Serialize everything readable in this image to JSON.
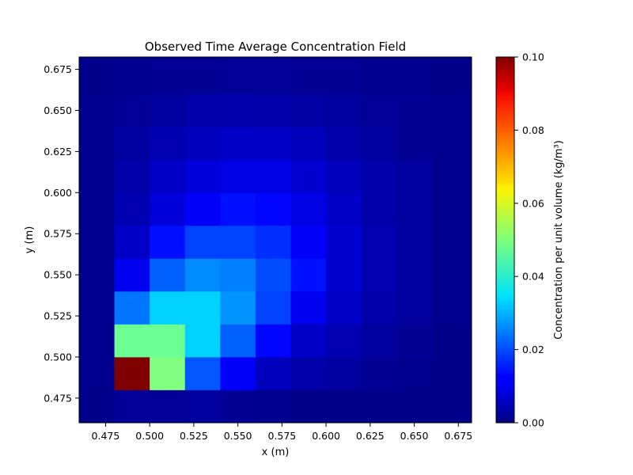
{
  "chart_data": {
    "type": "heatmap",
    "title": "Observed Time Average Concentration Field",
    "xlabel": "x (m)",
    "ylabel": "y (m)",
    "colorbar_label": "Concentration per unit volume (kg/m³)",
    "colormap": "jet",
    "xlim": [
      0.46,
      0.6825
    ],
    "ylim": [
      0.46,
      0.6825
    ],
    "clim": [
      0.0,
      0.1
    ],
    "cell_size": 0.02,
    "x_ticks": [
      0.475,
      0.5,
      0.525,
      0.55,
      0.575,
      0.6,
      0.625,
      0.65,
      0.675
    ],
    "x_tick_labels": [
      "0.475",
      "0.500",
      "0.525",
      "0.550",
      "0.575",
      "0.600",
      "0.625",
      "0.650",
      "0.675"
    ],
    "y_ticks": [
      0.475,
      0.5,
      0.525,
      0.55,
      0.575,
      0.6,
      0.625,
      0.65,
      0.675
    ],
    "y_tick_labels": [
      "0.475",
      "0.500",
      "0.525",
      "0.550",
      "0.575",
      "0.600",
      "0.625",
      "0.650",
      "0.675"
    ],
    "cb_ticks": [
      0.0,
      0.02,
      0.04,
      0.06,
      0.08,
      0.1
    ],
    "cb_tick_labels": [
      "0.00",
      "0.02",
      "0.04",
      "0.06",
      "0.08",
      "0.10"
    ],
    "x_edges": [
      0.46,
      0.48,
      0.5,
      0.52,
      0.54,
      0.56,
      0.58,
      0.6,
      0.62,
      0.64,
      0.66,
      0.6825
    ],
    "y_edges": [
      0.46,
      0.48,
      0.5,
      0.52,
      0.54,
      0.56,
      0.58,
      0.6,
      0.62,
      0.64,
      0.66,
      0.6825
    ],
    "values": [
      [
        0.001,
        0.0025,
        0.0025,
        0.003,
        0.002,
        0.0015,
        0.001,
        0.001,
        0.001,
        0.001,
        0.001
      ],
      [
        0.0015,
        0.1,
        0.05,
        0.021,
        0.012,
        0.006,
        0.004,
        0.003,
        0.002,
        0.0015,
        0.001
      ],
      [
        0.0015,
        0.048,
        0.048,
        0.033,
        0.022,
        0.013,
        0.007,
        0.005,
        0.003,
        0.002,
        0.001
      ],
      [
        0.0015,
        0.024,
        0.033,
        0.033,
        0.027,
        0.019,
        0.011,
        0.007,
        0.004,
        0.003,
        0.0015
      ],
      [
        0.0015,
        0.011,
        0.022,
        0.026,
        0.025,
        0.02,
        0.014,
        0.008,
        0.005,
        0.003,
        0.0015
      ],
      [
        0.0015,
        0.007,
        0.014,
        0.019,
        0.019,
        0.017,
        0.012,
        0.008,
        0.005,
        0.003,
        0.0015
      ],
      [
        0.0015,
        0.005,
        0.009,
        0.012,
        0.014,
        0.013,
        0.01,
        0.007,
        0.004,
        0.003,
        0.0015
      ],
      [
        0.0015,
        0.004,
        0.007,
        0.009,
        0.01,
        0.01,
        0.008,
        0.006,
        0.004,
        0.003,
        0.0015
      ],
      [
        0.0015,
        0.003,
        0.005,
        0.006,
        0.007,
        0.007,
        0.006,
        0.004,
        0.003,
        0.002,
        0.0015
      ],
      [
        0.0015,
        0.0025,
        0.003,
        0.004,
        0.0045,
        0.004,
        0.0035,
        0.003,
        0.0025,
        0.002,
        0.0015
      ],
      [
        0.001,
        0.0015,
        0.002,
        0.002,
        0.0025,
        0.0025,
        0.002,
        0.002,
        0.0015,
        0.0015,
        0.001
      ]
    ]
  }
}
